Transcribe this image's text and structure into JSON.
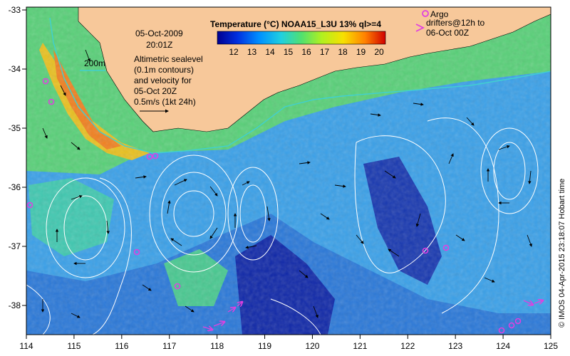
{
  "colorbar": {
    "title": "Temperature (°C) NOAA15_L3U 13% ql>=4",
    "ticks": [
      "12",
      "13",
      "14",
      "15",
      "16",
      "17",
      "18",
      "19",
      "20"
    ]
  },
  "date": "05-Oct-2009",
  "time": "20:01Z",
  "scale_label": "200m",
  "note_lines": [
    "Altimetric sealevel",
    "(0.1m contours)",
    "and velocity for",
    "05-Oct 20Z",
    "0.5m/s (1kt 24h)"
  ],
  "argo_label": "Argo",
  "drifters_lines": [
    "drifters@12h to",
    "06-Oct 00Z"
  ],
  "credit": "© IMOS 04-Apr-2015 23:18:07 Hobart time",
  "axes": {
    "lon_ticks": [
      "114",
      "115",
      "116",
      "117",
      "118",
      "119",
      "120",
      "121",
      "122",
      "123",
      "124",
      "125"
    ],
    "lat_ticks": [
      "-33",
      "-34",
      "-35",
      "-36",
      "-37",
      "-38"
    ]
  },
  "colors": {
    "land": "#f7c89a",
    "argo": "#e040e0",
    "drifter": "#e040e0",
    "contour": "#ffffff",
    "shelf": "#40d0d0"
  }
}
